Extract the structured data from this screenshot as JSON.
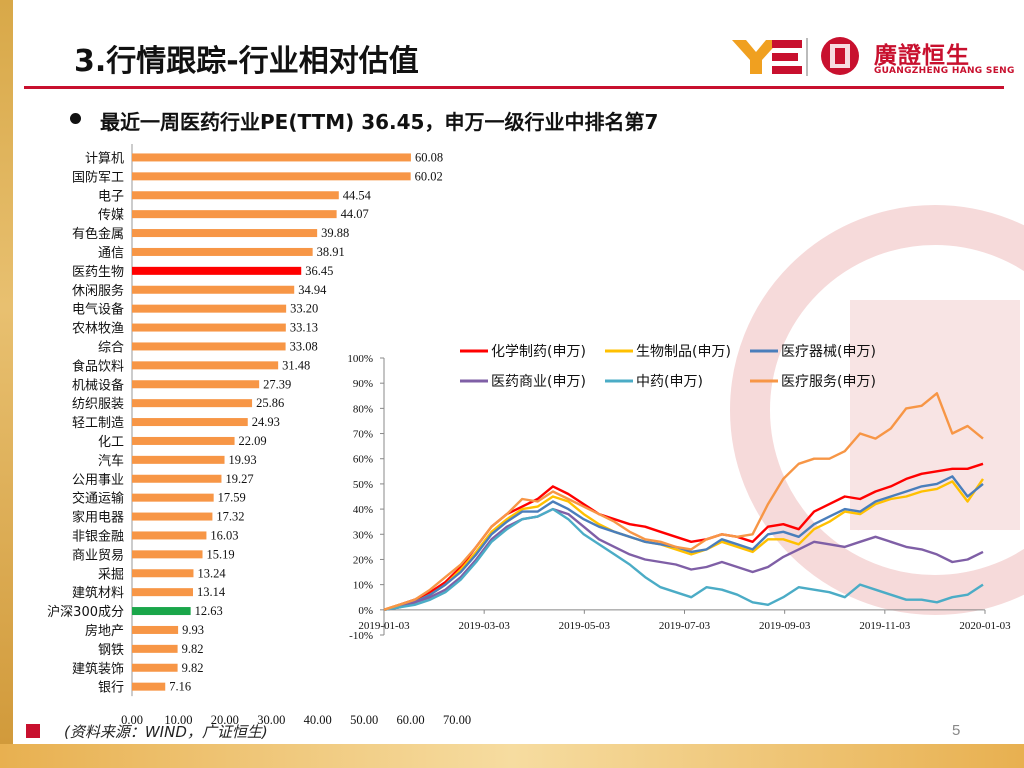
{
  "header": {
    "title": "3.行情跟踪-行业相对估值",
    "logo_cn": "廣證恒生",
    "logo_en": "GUANGZHENG HANG SENG"
  },
  "bullet": "最近一周医药行业PE(TTM) 36.45，申万一级行业中排名第7",
  "footer": {
    "source": "(资料来源：WIND，广证恒生)",
    "page": "5"
  },
  "colors": {
    "brand_red": "#c8102e",
    "bar_default": "#f79646",
    "bar_highlight": "#ff0000",
    "bar_benchmark": "#1aa64a"
  },
  "chart_data": [
    {
      "type": "bar",
      "orientation": "horizontal",
      "categories": [
        "计算机",
        "国防军工",
        "电子",
        "传媒",
        "有色金属",
        "通信",
        "医药生物",
        "休闲服务",
        "电气设备",
        "农林牧渔",
        "综合",
        "食品饮料",
        "机械设备",
        "纺织服装",
        "轻工制造",
        "化工",
        "汽车",
        "公用事业",
        "交通运输",
        "家用电器",
        "非银金融",
        "商业贸易",
        "采掘",
        "建筑材料",
        "沪深300成分",
        "房地产",
        "钢铁",
        "建筑装饰",
        "银行"
      ],
      "values": [
        60.08,
        60.02,
        44.54,
        44.07,
        39.88,
        38.91,
        36.45,
        34.94,
        33.2,
        33.13,
        33.08,
        31.48,
        27.39,
        25.86,
        24.93,
        22.09,
        19.93,
        19.27,
        17.59,
        17.32,
        16.03,
        15.19,
        13.24,
        13.14,
        12.63,
        9.93,
        9.82,
        9.82,
        7.16
      ],
      "value_labels": [
        "60.08",
        "60.02",
        "44.54",
        "44.07",
        "39.88",
        "38.91",
        "36.45",
        "34.94",
        "33.20",
        "33.13",
        "33.08",
        "31.48",
        "27.39",
        "25.86",
        "24.93",
        "22.09",
        "19.93",
        "19.27",
        "17.59",
        "17.32",
        "16.03",
        "15.19",
        "13.24",
        "13.14",
        "12.63",
        "9.93",
        "9.82",
        "9.82",
        "7.16"
      ],
      "highlight": {
        "医药生物": "bar_highlight",
        "沪深300成分": "bar_benchmark"
      },
      "xlim": [
        0,
        70
      ],
      "xticks": [
        "0.00",
        "10.00",
        "20.00",
        "30.00",
        "40.00",
        "50.00",
        "60.00",
        "70.00"
      ],
      "grid": false
    },
    {
      "type": "line",
      "x_tick_labels": [
        "2019-01-03",
        "2019-03-03",
        "2019-05-03",
        "2019-07-03",
        "2019-09-03",
        "2019-11-03",
        "2020-01-03"
      ],
      "y_tick_labels": [
        "100%",
        "90%",
        "80%",
        "70%",
        "60%",
        "50%",
        "40%",
        "30%",
        "20%",
        "10%",
        "0%",
        "-10%"
      ],
      "ylim": [
        -10,
        100
      ],
      "legend_position": "top-right",
      "series": [
        {
          "name": "化学制药(申万)",
          "color": "#ff0000",
          "values": [
            0,
            2,
            4,
            7,
            11,
            17,
            25,
            33,
            38,
            41,
            44,
            49,
            46,
            42,
            38,
            36,
            34,
            33,
            31,
            29,
            27,
            28,
            30,
            29,
            27,
            33,
            34,
            32,
            39,
            42,
            45,
            44,
            47,
            49,
            52,
            54,
            55,
            56,
            56,
            58
          ]
        },
        {
          "name": "生物制品(申万)",
          "color": "#ffc000",
          "values": [
            0,
            2,
            3,
            6,
            10,
            16,
            23,
            31,
            36,
            40,
            41,
            45,
            43,
            38,
            34,
            31,
            29,
            27,
            26,
            24,
            22,
            24,
            27,
            25,
            23,
            28,
            28,
            26,
            32,
            35,
            39,
            38,
            42,
            44,
            45,
            47,
            48,
            51,
            43,
            52
          ]
        },
        {
          "name": "医疗器械(申万)",
          "color": "#4a7ebb",
          "values": [
            0,
            1,
            3,
            6,
            10,
            15,
            22,
            30,
            35,
            39,
            39,
            43,
            40,
            36,
            33,
            31,
            29,
            27,
            26,
            25,
            23,
            24,
            28,
            26,
            24,
            30,
            31,
            29,
            34,
            37,
            40,
            39,
            43,
            45,
            47,
            49,
            50,
            53,
            45,
            50
          ]
        },
        {
          "name": "医药商业(申万)",
          "color": "#7f5fa6",
          "values": [
            0,
            1,
            3,
            5,
            8,
            13,
            20,
            28,
            33,
            36,
            37,
            40,
            38,
            33,
            28,
            25,
            22,
            20,
            19,
            18,
            16,
            17,
            19,
            17,
            15,
            17,
            21,
            24,
            27,
            26,
            25,
            27,
            29,
            27,
            25,
            24,
            22,
            19,
            20,
            23
          ]
        },
        {
          "name": "中药(申万)",
          "color": "#4bacc6",
          "values": [
            0,
            1,
            2,
            4,
            7,
            12,
            19,
            27,
            32,
            36,
            37,
            40,
            36,
            30,
            26,
            22,
            18,
            13,
            9,
            7,
            5,
            9,
            8,
            6,
            3,
            2,
            5,
            9,
            8,
            7,
            5,
            10,
            8,
            6,
            4,
            4,
            3,
            5,
            6,
            10
          ]
        },
        {
          "name": "医疗服务(申万)",
          "color": "#f79646",
          "values": [
            0,
            2,
            4,
            8,
            13,
            18,
            25,
            33,
            38,
            44,
            43,
            47,
            44,
            41,
            38,
            35,
            31,
            28,
            27,
            25,
            24,
            28,
            30,
            29,
            30,
            42,
            52,
            58,
            60,
            60,
            63,
            70,
            68,
            72,
            80,
            81,
            86,
            70,
            73,
            68
          ]
        }
      ]
    }
  ]
}
